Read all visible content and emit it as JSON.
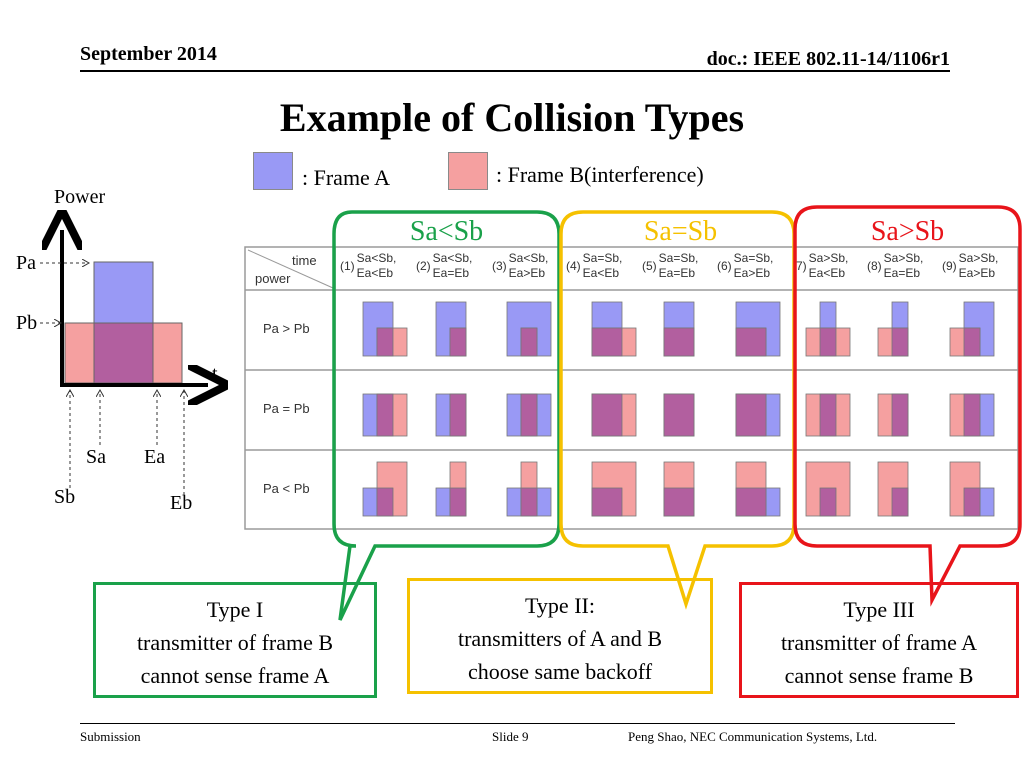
{
  "header": {
    "date": "September 2014",
    "doc": "doc.: IEEE 802.11-14/1106r1"
  },
  "title": "Example of  Collision Types",
  "legend": {
    "frame_a": ": Frame A",
    "frame_b": ": Frame B(interference)"
  },
  "colors": {
    "frame_a": "#9999f5",
    "frame_b": "#f5a0a0",
    "overlap": "#b25f9f",
    "type1": "#1aa14a",
    "type2": "#f5c100",
    "type3": "#e8141a"
  },
  "left_diagram": {
    "axis_y": "Power",
    "axis_x": "t",
    "pa": "Pa",
    "pb": "Pb",
    "sa": "Sa",
    "ea": "Ea",
    "sb": "Sb",
    "eb": "Eb"
  },
  "table": {
    "corner_time": "time",
    "corner_power": "power",
    "rows": [
      "Pa > Pb",
      "Pa = Pb",
      "Pa < Pb"
    ],
    "cols": [
      {
        "n": "(1)",
        "l1": "Sa<Sb,",
        "l2": "Ea<Eb"
      },
      {
        "n": "(2)",
        "l1": "Sa<Sb,",
        "l2": "Ea=Eb"
      },
      {
        "n": "(3)",
        "l1": "Sa<Sb,",
        "l2": "Ea>Eb"
      },
      {
        "n": "(4)",
        "l1": "Sa=Sb,",
        "l2": "Ea<Eb"
      },
      {
        "n": "(5)",
        "l1": "Sa=Sb,",
        "l2": "Ea=Eb"
      },
      {
        "n": "(6)",
        "l1": "Sa=Sb,",
        "l2": "Ea>Eb"
      },
      {
        "n": "(7)",
        "l1": "Sa>Sb,",
        "l2": "Ea<Eb"
      },
      {
        "n": "(8)",
        "l1": "Sa>Sb,",
        "l2": "Ea=Eb"
      },
      {
        "n": "(9)",
        "l1": "Sa>Sb,",
        "l2": "Ea>Eb"
      }
    ]
  },
  "bubbles": {
    "lt": "Sa<Sb",
    "eq": "Sa=Sb",
    "gt": "Sa>Sb"
  },
  "callouts": {
    "type1": {
      "l1": "Type I",
      "l2": "transmitter of frame B",
      "l3": "cannot sense frame A"
    },
    "type2": {
      "l1": "Type II:",
      "l2": "transmitters of A and B",
      "l3": "choose same backoff"
    },
    "type3": {
      "l1": "Type III",
      "l2": "transmitter of frame A",
      "l3": "cannot sense frame B"
    }
  },
  "footer": {
    "left": "Submission",
    "center": "Slide 9",
    "right": "Peng Shao, NEC Communication Systems, Ltd."
  }
}
